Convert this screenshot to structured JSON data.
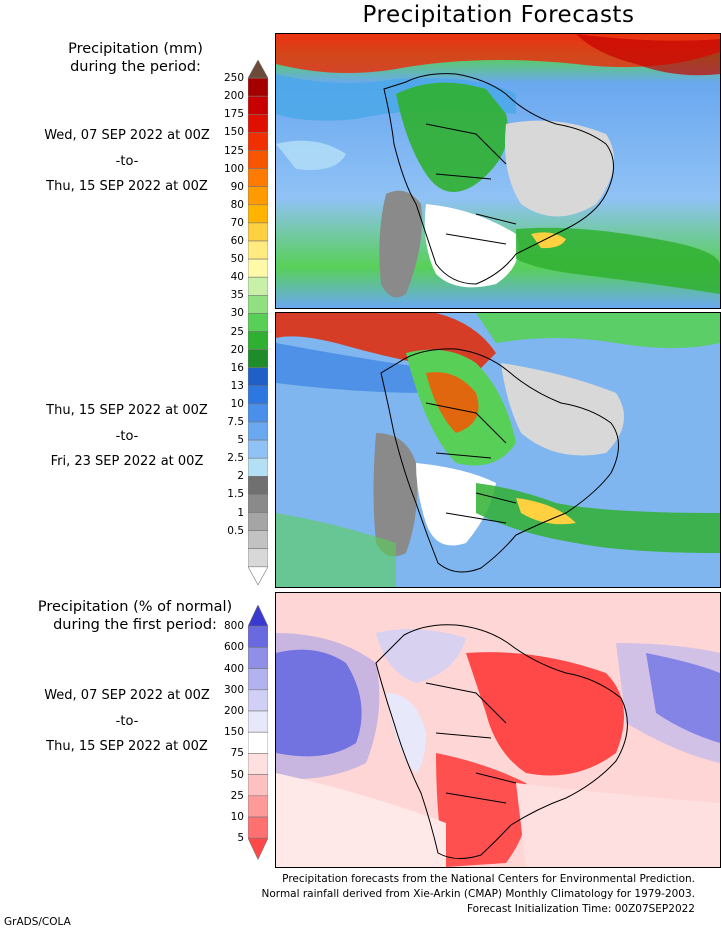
{
  "title": "Precipitation Forecasts",
  "legend_mm": {
    "heading_line1": "Precipitation (mm)",
    "heading_line2": "during the period:",
    "ticks": [
      "250",
      "200",
      "175",
      "150",
      "125",
      "100",
      "90",
      "80",
      "70",
      "60",
      "50",
      "40",
      "35",
      "30",
      "25",
      "20",
      "16",
      "13",
      "10",
      "7.5",
      "5",
      "2.5",
      "2",
      "1.5",
      "1",
      "0.5"
    ],
    "colors": [
      "#6b2c1f",
      "#a50000",
      "#c80000",
      "#e01000",
      "#f03000",
      "#f85500",
      "#ff7a00",
      "#ff9a00",
      "#ffb400",
      "#ffd040",
      "#ffeb80",
      "#fffaa8",
      "#c8f0a8",
      "#90e080",
      "#58d058",
      "#30b030",
      "#1f8c2a",
      "#1f5fc8",
      "#2d78e0",
      "#4a90ea",
      "#6aa8f0",
      "#90c2f5",
      "#b4e0f6",
      "#707070",
      "#8a8a8a",
      "#a5a5a5",
      "#c2c2c2",
      "#d8d8d8",
      "#ffffff"
    ],
    "top_arrow_color": "#6b4a3a"
  },
  "period1": {
    "start": "Wed, 07 SEP 2022 at 00Z",
    "sep": "-to-",
    "end": "Thu, 15 SEP 2022 at 00Z"
  },
  "period2": {
    "start": "Thu, 15 SEP 2022 at 00Z",
    "sep": "-to-",
    "end": "Fri, 23 SEP 2022 at 00Z"
  },
  "legend_pct": {
    "heading_line1": "Precipitation (% of normal)",
    "heading_line2": "during the first period:",
    "ticks": [
      "800",
      "600",
      "400",
      "300",
      "200",
      "150",
      "75",
      "50",
      "25",
      "10",
      "5"
    ],
    "colors": [
      "#3a3ad0",
      "#6a6ae0",
      "#8f8fe8",
      "#b2b2f0",
      "#d0d0f6",
      "#e8e8fb",
      "#ffffff",
      "#ffe0e0",
      "#ffc0c0",
      "#ff9a9a",
      "#ff7070",
      "#ff4848"
    ]
  },
  "period3": {
    "start": "Wed, 07 SEP 2022 at 00Z",
    "sep": "-to-",
    "end": "Thu, 15 SEP 2022 at 00Z"
  },
  "footer": {
    "line1": "Precipitation forecasts from the National Centers for Environmental Prediction.",
    "line2": "Normal rainfall derived from Xie-Arkin (CMAP) Monthly Climatology for 1979-2003.",
    "line3": "Forecast Initialization Time: 00Z07SEP2022"
  },
  "credit": "GrADS/COLA"
}
